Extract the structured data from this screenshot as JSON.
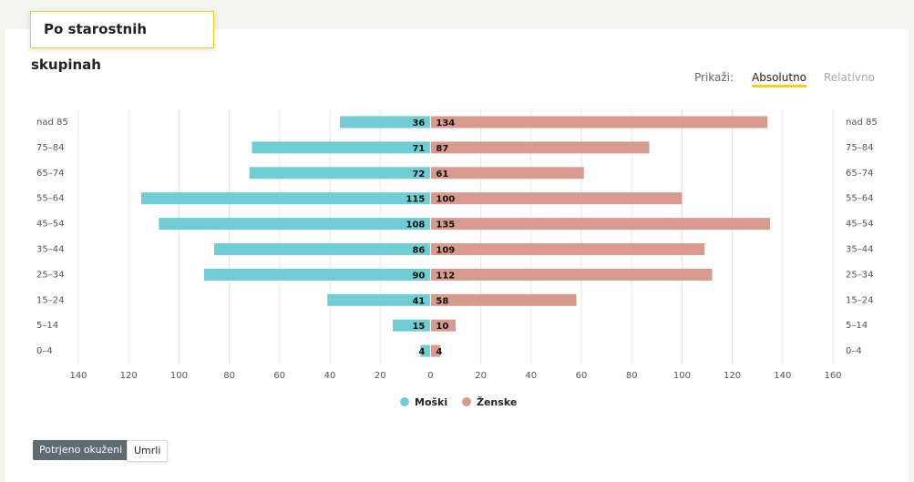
{
  "header": {
    "title": "Po starostnih skupinah"
  },
  "controls": {
    "label": "Prikaži:",
    "options": [
      "Absolutno",
      "Relativno"
    ]
  },
  "chart_data": {
    "type": "pyramid",
    "categories": [
      "nad 85",
      "75–84",
      "65–74",
      "55–64",
      "45–54",
      "35–44",
      "25–34",
      "15–24",
      "5–14",
      "0–4"
    ],
    "series": [
      {
        "name": "Moški",
        "color": "#70cdd3",
        "side": "left",
        "values": [
          36,
          71,
          72,
          115,
          108,
          86,
          90,
          41,
          15,
          4
        ]
      },
      {
        "name": "Ženske",
        "color": "#d99a8e",
        "side": "right",
        "values": [
          134,
          87,
          61,
          100,
          135,
          109,
          112,
          58,
          10,
          4
        ]
      }
    ],
    "xlim": [
      -140,
      160
    ],
    "xticks": [
      {
        "value": -140,
        "label": "140"
      },
      {
        "value": -120,
        "label": "120"
      },
      {
        "value": -100,
        "label": "100"
      },
      {
        "value": -80,
        "label": "80"
      },
      {
        "value": -60,
        "label": "60"
      },
      {
        "value": -40,
        "label": "40"
      },
      {
        "value": -20,
        "label": "20"
      },
      0,
      20,
      40,
      60,
      80,
      100,
      120,
      140,
      160
    ],
    "grid": true,
    "legend": "bottom"
  },
  "buttons": [
    "Potrjeno okuženi",
    "Umrli"
  ]
}
